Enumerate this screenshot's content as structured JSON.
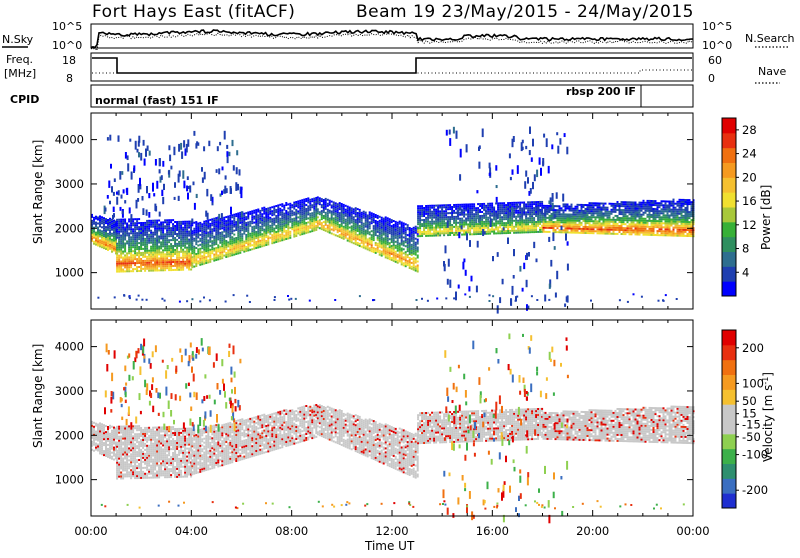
{
  "header": {
    "station": "Fort Hays East (fitACF)",
    "beam_date": "Beam 19  23/May/2015 - 24/May/2015"
  },
  "top_panels": {
    "noise": {
      "left_label": "N.Sky",
      "left_ticks": [
        "10^5",
        "10^0"
      ],
      "right_label": "N.Search",
      "right_ticks": [
        "10^5",
        "10^0"
      ]
    },
    "freq": {
      "left_label_1": "Freq.",
      "left_label_2": "[MHz]",
      "left_ticks": [
        "18",
        "8"
      ],
      "right_label": "Nave",
      "right_ticks": [
        "60",
        "0"
      ]
    },
    "cpid": {
      "label": "CPID",
      "segments": [
        {
          "text": "normal (fast) 151 IF",
          "start_hour": 0,
          "end_hour": 22
        },
        {
          "text": "rbsp 200 IF",
          "start_hour": 22,
          "end_hour": 24
        }
      ]
    }
  },
  "colors": {
    "power_scale": [
      "#0000ff",
      "#1f3fb0",
      "#2e6e8f",
      "#2f8f5f",
      "#37b037",
      "#a8c83a",
      "#f0e030",
      "#f5c030",
      "#f59a20",
      "#f07010",
      "#e83010",
      "#e00000"
    ],
    "velocity_scale": [
      "#1f2fd0",
      "#3a6ec0",
      "#2e8f6f",
      "#3cb04a",
      "#8ed050",
      "#c8c8c8",
      "#c8c8c8",
      "#f5c030",
      "#f59a20",
      "#f07010",
      "#e83010",
      "#e00000"
    ]
  },
  "chart_data": [
    {
      "type": "heatmap",
      "name": "power",
      "xlabel": "Time UT",
      "ylabel": "Slant Range [km]",
      "xlim": [
        0,
        24
      ],
      "ylim": [
        180,
        4600
      ],
      "x_ticks": [
        "00:00",
        "04:00",
        "08:00",
        "12:00",
        "16:00",
        "20:00",
        "00:00"
      ],
      "y_ticks": [
        1000,
        2000,
        3000,
        4000
      ],
      "colorbar": {
        "label": "Power [dB]",
        "ticks": [
          4,
          8,
          12,
          16,
          20,
          24,
          28
        ],
        "range": [
          0,
          30
        ]
      },
      "bands": [
        {
          "t0": 0,
          "t1": 1,
          "lower_km": [
            1650,
            1400
          ],
          "upper_km": [
            2300,
            2150
          ],
          "peak_db": 24
        },
        {
          "t0": 1,
          "t1": 4,
          "lower_km": [
            1000,
            1050
          ],
          "upper_km": [
            2200,
            2150
          ],
          "peak_db": 26
        },
        {
          "t0": 4,
          "t1": 9,
          "lower_km": [
            1100,
            1950
          ],
          "upper_km": [
            2100,
            2700
          ],
          "peak_db": 20
        },
        {
          "t0": 9,
          "t1": 13,
          "lower_km": [
            2000,
            1000
          ],
          "upper_km": [
            2700,
            2000
          ],
          "peak_db": 22
        },
        {
          "t0": 13,
          "t1": 18,
          "lower_km": [
            1800,
            1900
          ],
          "upper_km": [
            2500,
            2600
          ],
          "peak_db": 18
        },
        {
          "t0": 18,
          "t1": 24,
          "lower_km": [
            1900,
            1800
          ],
          "upper_km": [
            2500,
            2650
          ],
          "peak_db": 26
        }
      ],
      "scatter_regions": [
        {
          "t0": 0.5,
          "t1": 6,
          "lower_km": 2200,
          "upper_km": 4200
        },
        {
          "t0": 14,
          "t1": 19,
          "lower_km": 200,
          "upper_km": 4300
        }
      ]
    },
    {
      "type": "heatmap",
      "name": "velocity",
      "xlabel": "Time UT",
      "ylabel": "Slant Range [km]",
      "xlim": [
        0,
        24
      ],
      "ylim": [
        180,
        4600
      ],
      "x_ticks": [
        "00:00",
        "04:00",
        "08:00",
        "12:00",
        "16:00",
        "20:00",
        "00:00"
      ],
      "y_ticks": [
        1000,
        2000,
        3000,
        4000
      ],
      "colorbar": {
        "label": "Velocity [m s^-1]",
        "ticks": [
          200,
          100,
          50,
          15,
          -15,
          -50,
          -100,
          -200
        ],
        "range": [
          -250,
          250
        ]
      },
      "dominant_color": "ground scatter grey",
      "bands": [
        {
          "t0": 0,
          "t1": 1,
          "lower_km": [
            1650,
            1400
          ],
          "upper_km": [
            2300,
            2150
          ]
        },
        {
          "t0": 1,
          "t1": 4,
          "lower_km": [
            1000,
            1050
          ],
          "upper_km": [
            2200,
            2150
          ]
        },
        {
          "t0": 4,
          "t1": 9,
          "lower_km": [
            1100,
            1950
          ],
          "upper_km": [
            2100,
            2700
          ]
        },
        {
          "t0": 9,
          "t1": 13,
          "lower_km": [
            2000,
            1000
          ],
          "upper_km": [
            2700,
            2000
          ]
        },
        {
          "t0": 13,
          "t1": 18,
          "lower_km": [
            1800,
            1900
          ],
          "upper_km": [
            2500,
            2600
          ]
        },
        {
          "t0": 18,
          "t1": 24,
          "lower_km": [
            1900,
            1800
          ],
          "upper_km": [
            2500,
            2650
          ]
        }
      ]
    }
  ]
}
